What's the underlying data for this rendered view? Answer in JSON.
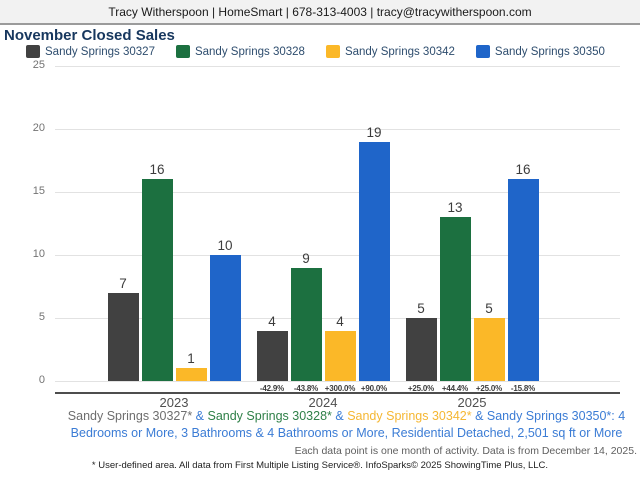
{
  "header": {
    "contact_line": "Tracy Witherspoon | HomeSmart | 678-313-4003 | tracy@tracywitherspoon.com"
  },
  "title": "November Closed Sales",
  "chart_data": {
    "type": "bar",
    "title": "November Closed Sales",
    "categories": [
      "2023",
      "2024",
      "2025"
    ],
    "series": [
      {
        "name": "Sandy Springs 30327",
        "color": "#414141",
        "values": [
          7,
          4,
          5
        ],
        "pct_change": [
          "",
          "-42.9%",
          "+25.0%"
        ]
      },
      {
        "name": "Sandy Springs 30328",
        "color": "#1c7040",
        "values": [
          16,
          9,
          13
        ],
        "pct_change": [
          "",
          "-43.8%",
          "+44.4%"
        ]
      },
      {
        "name": "Sandy Springs 30342",
        "color": "#fbb828",
        "values": [
          1,
          4,
          5
        ],
        "pct_change": [
          "",
          "+300.0%",
          "+25.0%"
        ]
      },
      {
        "name": "Sandy Springs 30350",
        "color": "#1f65c9",
        "values": [
          10,
          19,
          16
        ],
        "pct_change": [
          "",
          "+90.0%",
          "-15.8%"
        ]
      }
    ],
    "y_ticks": [
      0,
      5,
      10,
      15,
      20,
      25
    ],
    "ylim": [
      0,
      25
    ],
    "grid": true,
    "legend_position": "top",
    "xlabel": "",
    "ylabel": ""
  },
  "footnotes": {
    "criteria_segments": [
      {
        "text": "Sandy Springs 30327*",
        "color": "#6e6e6e"
      },
      {
        "text": " & ",
        "color": "#3b7cd5"
      },
      {
        "text": "Sandy Springs 30328*",
        "color": "#2f8048"
      },
      {
        "text": " & ",
        "color": "#3b7cd5"
      },
      {
        "text": "Sandy Springs 30342*",
        "color": "#f5b733"
      },
      {
        "text": " & ",
        "color": "#3b7cd5"
      },
      {
        "text": "Sandy Springs 30350*",
        "color": "#3b7cd5"
      },
      {
        "text": ": 4 Bedrooms or More, 3 Bathrooms & 4 Bathrooms or More, Residential Detached, 2,501 sq ft or More",
        "color": "#3b7cd5"
      }
    ],
    "activity_note": "Each data point is one month of activity. Data is from December 14, 2025.",
    "disclaimer": "* User-defined area. All data from First Multiple Listing Service®. InfoSparks© 2025 ShowingTime Plus, LLC."
  }
}
